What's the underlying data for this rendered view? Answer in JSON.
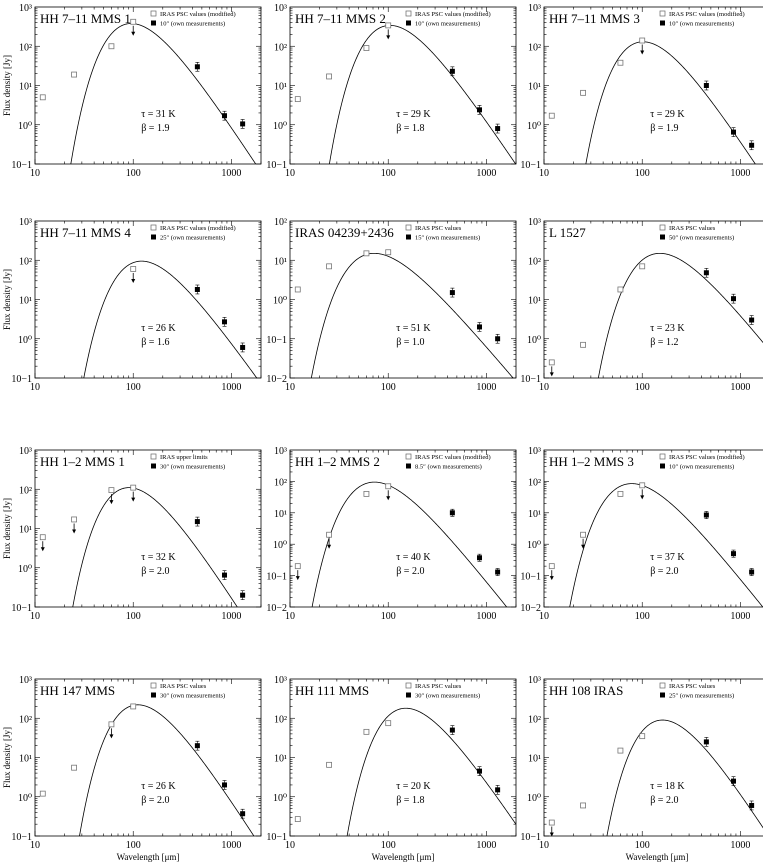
{
  "figure": {
    "ylabel": "Flux density [Jy]",
    "xlabel": "Wavelength [μm]"
  },
  "chart_data": [
    {
      "type": "scatter",
      "title": "HH 7–11 MMS 1",
      "legend": [
        "IRAS PSC values (modified)",
        "10″ (own measurements)"
      ],
      "xscale": "log",
      "yscale": "log",
      "xlim": [
        10,
        2000
      ],
      "yticks": [
        "10−1",
        "10⁰",
        "10¹",
        "10²",
        "10³"
      ],
      "xticks": [
        "10",
        "100",
        "1000"
      ],
      "fit_label": [
        "τ = 31 K",
        "β = 1.9"
      ],
      "ylabel": "Flux density [Jy]",
      "xlabel": "",
      "ylim": [
        0.1,
        1000
      ],
      "T": 31,
      "beta": 1.9,
      "peak": 380,
      "iras": [
        [
          12,
          5
        ],
        [
          25,
          19
        ],
        [
          60,
          100
        ],
        [
          100,
          420
        ]
      ],
      "iras_upper": [
        [
          100,
          420
        ]
      ],
      "own": [
        [
          450,
          30
        ],
        [
          850,
          1.7
        ],
        [
          1300,
          1.05
        ]
      ]
    },
    {
      "type": "scatter",
      "title": "HH 7–11 MMS 2",
      "legend": [
        "IRAS PSC values (modified)",
        "10″ (own measurements)"
      ],
      "xscale": "log",
      "yscale": "log",
      "xlim": [
        10,
        2000
      ],
      "yticks": [
        "10−1",
        "10⁰",
        "10¹",
        "10²",
        "10³"
      ],
      "xticks": [
        "10",
        "100",
        "1000"
      ],
      "fit_label": [
        "τ = 29 K",
        "β = 1.8"
      ],
      "ylabel": "",
      "xlabel": "",
      "ylim": [
        0.1,
        1000
      ],
      "T": 29,
      "beta": 1.8,
      "peak": 340,
      "iras": [
        [
          12,
          4.5
        ],
        [
          25,
          17
        ],
        [
          60,
          90
        ],
        [
          100,
          340
        ]
      ],
      "iras_upper": [
        [
          100,
          340
        ]
      ],
      "own": [
        [
          450,
          23
        ],
        [
          850,
          2.4
        ],
        [
          1300,
          0.8
        ]
      ]
    },
    {
      "type": "scatter",
      "title": "HH 7–11 MMS 3",
      "legend": [
        "IRAS PSC values (modified)",
        "10″ (own measurements)"
      ],
      "xscale": "log",
      "yscale": "log",
      "xlim": [
        10,
        2000
      ],
      "yticks": [
        "10−1",
        "10⁰",
        "10¹",
        "10²",
        "10³"
      ],
      "xticks": [
        "10",
        "100",
        "1000"
      ],
      "fit_label": [
        "τ = 29 K",
        "β = 1.9"
      ],
      "ylabel": "",
      "xlabel": "",
      "ylim": [
        0.1,
        1000
      ],
      "T": 29,
      "beta": 1.9,
      "peak": 130,
      "iras": [
        [
          12,
          1.7
        ],
        [
          25,
          6.5
        ],
        [
          60,
          38
        ],
        [
          100,
          140
        ]
      ],
      "iras_upper": [
        [
          100,
          140
        ]
      ],
      "own": [
        [
          450,
          10
        ],
        [
          850,
          0.65
        ],
        [
          1300,
          0.3
        ]
      ]
    },
    {
      "type": "scatter",
      "title": "HH 7–11 MMS 4",
      "legend": [
        "IRAS PSC values (modified)",
        "25″ (own measurements)"
      ],
      "xscale": "log",
      "yscale": "log",
      "xlim": [
        10,
        2000
      ],
      "yticks": [
        "10−1",
        "10⁰",
        "10¹",
        "10²",
        "10³"
      ],
      "xticks": [
        "10",
        "100",
        "1000"
      ],
      "fit_label": [
        "τ = 26 K",
        "β = 1.6"
      ],
      "ylabel": "Flux density [Jy]",
      "xlabel": "",
      "ylim": [
        0.1,
        1000
      ],
      "T": 26,
      "beta": 1.6,
      "peak": 95,
      "iras": [
        [
          100,
          60
        ]
      ],
      "iras_upper": [
        [
          100,
          60
        ]
      ],
      "own": [
        [
          450,
          18
        ],
        [
          850,
          2.7
        ],
        [
          1300,
          0.6
        ]
      ]
    },
    {
      "type": "scatter",
      "title": "IRAS 04239+2436",
      "legend": [
        "IRAS PSC values",
        "15″ (own measurements)"
      ],
      "xscale": "log",
      "yscale": "log",
      "xlim": [
        10,
        2000
      ],
      "yticks": [
        "10−2",
        "10−1",
        "10⁰",
        "10¹",
        "10²"
      ],
      "xticks": [
        "10",
        "100",
        "1000"
      ],
      "fit_label": [
        "τ = 51 K",
        "β = 1.0"
      ],
      "ylabel": "",
      "xlabel": "",
      "ylim": [
        0.01,
        100
      ],
      "T": 51,
      "beta": 1.0,
      "peak": 15,
      "iras": [
        [
          12,
          1.8
        ],
        [
          25,
          7
        ],
        [
          60,
          15
        ],
        [
          100,
          16
        ]
      ],
      "iras_upper": [],
      "own": [
        [
          450,
          1.5
        ],
        [
          850,
          0.2
        ],
        [
          1300,
          0.1
        ]
      ]
    },
    {
      "type": "scatter",
      "title": "L 1527",
      "legend": [
        "IRAS PSC values",
        "50″ (own measurements)"
      ],
      "xscale": "log",
      "yscale": "log",
      "xlim": [
        10,
        2000
      ],
      "yticks": [
        "10−1",
        "10⁰",
        "10¹",
        "10²",
        "10³"
      ],
      "xticks": [
        "10",
        "100",
        "1000"
      ],
      "fit_label": [
        "τ = 23 K",
        "β = 1.2"
      ],
      "ylabel": "",
      "xlabel": "",
      "ylim": [
        0.1,
        1000
      ],
      "T": 23,
      "beta": 1.2,
      "peak": 150,
      "iras": [
        [
          12,
          0.25
        ],
        [
          25,
          0.7
        ],
        [
          60,
          18
        ],
        [
          100,
          70
        ]
      ],
      "iras_upper": [
        [
          12,
          0.25
        ]
      ],
      "own": [
        [
          450,
          48
        ],
        [
          850,
          10.5
        ],
        [
          1300,
          3
        ]
      ]
    },
    {
      "type": "scatter",
      "title": "HH 1–2 MMS 1",
      "legend": [
        "IRAS upper limits",
        "30″ (own measurements)"
      ],
      "xscale": "log",
      "yscale": "log",
      "xlim": [
        10,
        2000
      ],
      "yticks": [
        "10−1",
        "10⁰",
        "10¹",
        "10²",
        "10³"
      ],
      "xticks": [
        "10",
        "100",
        "1000"
      ],
      "fit_label": [
        "τ = 32 K",
        "β = 2.0"
      ],
      "ylabel": "Flux density [Jy]",
      "xlabel": "",
      "ylim": [
        0.1,
        1000
      ],
      "T": 32,
      "beta": 2.0,
      "peak": 110,
      "iras": [
        [
          12,
          6
        ],
        [
          25,
          17
        ],
        [
          60,
          95
        ],
        [
          100,
          110
        ]
      ],
      "iras_upper": [
        [
          12,
          6
        ],
        [
          25,
          17
        ],
        [
          60,
          95
        ],
        [
          100,
          110
        ]
      ],
      "own": [
        [
          450,
          15
        ],
        [
          850,
          0.65
        ],
        [
          1300,
          0.2
        ]
      ]
    },
    {
      "type": "scatter",
      "title": "HH 1–2 MMS 2",
      "legend": [
        "IRAS PSC values (modified)",
        "8.5″ (own measurements)"
      ],
      "xscale": "log",
      "yscale": "log",
      "xlim": [
        10,
        2000
      ],
      "yticks": [
        "10−2",
        "10−1",
        "10⁰",
        "10¹",
        "10²",
        "10³"
      ],
      "xticks": [
        "10",
        "100",
        "1000"
      ],
      "fit_label": [
        "τ = 40 K",
        "β = 2.0"
      ],
      "ylabel": "",
      "xlabel": "",
      "ylim": [
        0.01,
        1000
      ],
      "T": 40,
      "beta": 2.0,
      "peak": 95,
      "iras": [
        [
          12,
          0.2
        ],
        [
          25,
          2
        ],
        [
          60,
          40
        ],
        [
          100,
          70
        ]
      ],
      "iras_upper": [
        [
          12,
          0.2
        ],
        [
          25,
          2
        ],
        [
          100,
          70
        ]
      ],
      "own": [
        [
          450,
          10
        ],
        [
          850,
          0.37
        ],
        [
          1300,
          0.13
        ]
      ]
    },
    {
      "type": "scatter",
      "title": "HH 1–2 MMS 3",
      "legend": [
        "IRAS PSC values (modified)",
        "10″ (own measurements)"
      ],
      "xscale": "log",
      "yscale": "log",
      "xlim": [
        10,
        2000
      ],
      "yticks": [
        "10−2",
        "10−1",
        "10⁰",
        "10¹",
        "10²",
        "10³"
      ],
      "xticks": [
        "10",
        "100",
        "1000"
      ],
      "fit_label": [
        "τ = 37 K",
        "β = 2.0"
      ],
      "ylabel": "",
      "xlabel": "",
      "ylim": [
        0.01,
        1000
      ],
      "T": 37,
      "beta": 2.0,
      "peak": 85,
      "iras": [
        [
          12,
          0.2
        ],
        [
          25,
          2
        ],
        [
          60,
          40
        ],
        [
          100,
          75
        ]
      ],
      "iras_upper": [
        [
          12,
          0.2
        ],
        [
          25,
          2
        ],
        [
          100,
          75
        ]
      ],
      "own": [
        [
          450,
          8.5
        ],
        [
          850,
          0.5
        ],
        [
          1300,
          0.13
        ]
      ]
    },
    {
      "type": "scatter",
      "title": "HH 147 MMS",
      "legend": [
        "IRAS PSC values",
        "30″ (own measurements)"
      ],
      "xscale": "log",
      "yscale": "log",
      "xlim": [
        10,
        2000
      ],
      "yticks": [
        "10−1",
        "10⁰",
        "10¹",
        "10²",
        "10³"
      ],
      "xticks": [
        "10",
        "100",
        "1000"
      ],
      "fit_label": [
        "τ = 26 K",
        "β = 2.0"
      ],
      "ylabel": "Flux density [Jy]",
      "xlabel": "Wavelength [μm]",
      "ylim": [
        0.1,
        1000
      ],
      "T": 26,
      "beta": 2.0,
      "peak": 220,
      "iras": [
        [
          12,
          1.2
        ],
        [
          25,
          5.5
        ],
        [
          60,
          70
        ],
        [
          100,
          200
        ]
      ],
      "iras_upper": [
        [
          60,
          70
        ]
      ],
      "own": [
        [
          450,
          20
        ],
        [
          850,
          2
        ],
        [
          1300,
          0.37
        ]
      ]
    },
    {
      "type": "scatter",
      "title": "HH 111 MMS",
      "legend": [
        "IRAS PSC values",
        "30″ (own measurements)"
      ],
      "xscale": "log",
      "yscale": "log",
      "xlim": [
        10,
        2000
      ],
      "yticks": [
        "10−1",
        "10⁰",
        "10¹",
        "10²",
        "10³"
      ],
      "xticks": [
        "10",
        "100",
        "1000"
      ],
      "fit_label": [
        "τ = 20 K",
        "β = 1.8"
      ],
      "ylabel": "",
      "xlabel": "Wavelength [μm]",
      "ylim": [
        0.1,
        1000
      ],
      "T": 20,
      "beta": 1.8,
      "peak": 180,
      "iras": [
        [
          12,
          0.27
        ],
        [
          25,
          6.5
        ],
        [
          60,
          45
        ],
        [
          100,
          75
        ]
      ],
      "iras_upper": [],
      "own": [
        [
          450,
          50
        ],
        [
          850,
          4.5
        ],
        [
          1300,
          1.5
        ]
      ]
    },
    {
      "type": "scatter",
      "title": "HH 108 IRAS",
      "legend": [
        "IRAS PSC values",
        "25″ (own measurements)"
      ],
      "xscale": "log",
      "yscale": "log",
      "xlim": [
        10,
        2000
      ],
      "yticks": [
        "10−1",
        "10⁰",
        "10¹",
        "10²",
        "10³"
      ],
      "xticks": [
        "10",
        "100",
        "1000"
      ],
      "fit_label": [
        "τ = 18 K",
        "β = 2.0"
      ],
      "ylabel": "",
      "xlabel": "Wavelength [μm]",
      "ylim": [
        0.1,
        1000
      ],
      "T": 18,
      "beta": 2.0,
      "peak": 90,
      "iras": [
        [
          12,
          0.22
        ],
        [
          25,
          0.6
        ],
        [
          60,
          15
        ],
        [
          100,
          35
        ]
      ],
      "iras_upper": [
        [
          12,
          0.22
        ]
      ],
      "own": [
        [
          450,
          25
        ],
        [
          850,
          2.5
        ],
        [
          1300,
          0.6
        ]
      ]
    }
  ]
}
